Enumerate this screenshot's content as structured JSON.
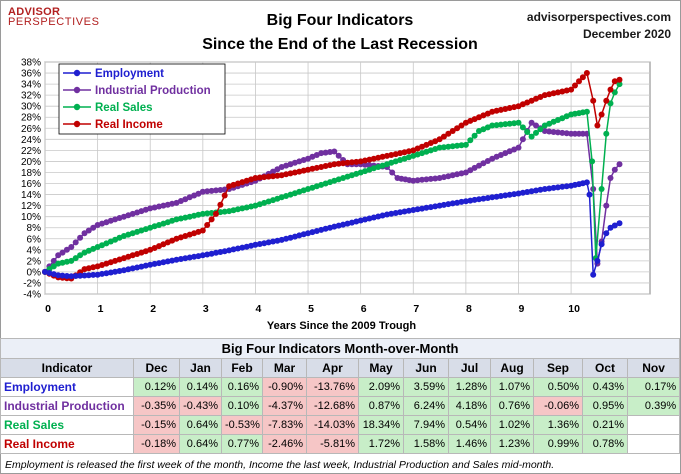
{
  "brand": {
    "line1": "ADVISOR",
    "line2": "PERSPECTIVES"
  },
  "title": "Big Four Indicators",
  "subtitle": "Since the End of the Last Recession",
  "source": "advisorperspectives.com",
  "date": "December 2020",
  "colors": {
    "employment": "#1f1fd0",
    "industrial": "#7030a0",
    "sales": "#00b050",
    "income": "#c00000"
  },
  "chart_data": {
    "type": "line",
    "xlabel": "Years Since the 2009 Trough",
    "xlim": [
      0,
      11.5
    ],
    "ylim": [
      -4,
      38
    ],
    "x_ticks": [
      0,
      1,
      2,
      3,
      4,
      5,
      6,
      7,
      8,
      9,
      10
    ],
    "y_ticks": [
      "-4%",
      "-2%",
      "0%",
      "2%",
      "4%",
      "6%",
      "8%",
      "10%",
      "12%",
      "14%",
      "16%",
      "18%",
      "20%",
      "22%",
      "24%",
      "26%",
      "28%",
      "30%",
      "32%",
      "34%",
      "36%",
      "38%"
    ],
    "legend_position": "top-left",
    "series": [
      {
        "name": "Employment",
        "key": "employment",
        "points": [
          [
            0,
            0
          ],
          [
            0.25,
            -0.6
          ],
          [
            0.5,
            -0.8
          ],
          [
            1,
            -0.5
          ],
          [
            1.5,
            0.3
          ],
          [
            2,
            1.3
          ],
          [
            2.5,
            2.2
          ],
          [
            3,
            3.0
          ],
          [
            3.5,
            3.9
          ],
          [
            4,
            4.9
          ],
          [
            4.5,
            5.8
          ],
          [
            5,
            7.0
          ],
          [
            5.5,
            8.2
          ],
          [
            6,
            9.3
          ],
          [
            6.5,
            10.4
          ],
          [
            7,
            11.2
          ],
          [
            7.5,
            12.0
          ],
          [
            8,
            12.8
          ],
          [
            8.5,
            13.5
          ],
          [
            9,
            14.2
          ],
          [
            9.5,
            15.0
          ],
          [
            10,
            15.6
          ],
          [
            10.3,
            16.2
          ],
          [
            10.35,
            14.0
          ],
          [
            10.42,
            -0.5
          ],
          [
            10.5,
            2.0
          ],
          [
            10.58,
            5.0
          ],
          [
            10.67,
            7.0
          ],
          [
            10.75,
            8.0
          ],
          [
            10.83,
            8.4
          ],
          [
            10.92,
            8.8
          ]
        ]
      },
      {
        "name": "Industrial Production",
        "key": "industrial",
        "points": [
          [
            0,
            0
          ],
          [
            0.25,
            3.0
          ],
          [
            0.5,
            4.5
          ],
          [
            0.75,
            7.0
          ],
          [
            1,
            8.5
          ],
          [
            1.5,
            10.0
          ],
          [
            2,
            11.5
          ],
          [
            2.5,
            12.5
          ],
          [
            3,
            14.5
          ],
          [
            3.5,
            15.0
          ],
          [
            4,
            16.5
          ],
          [
            4.5,
            19.0
          ],
          [
            5,
            20.5
          ],
          [
            5.25,
            21.5
          ],
          [
            5.5,
            21.8
          ],
          [
            5.75,
            19.5
          ],
          [
            6,
            19.5
          ],
          [
            6.5,
            19.0
          ],
          [
            6.7,
            17.0
          ],
          [
            7,
            16.5
          ],
          [
            7.5,
            17.0
          ],
          [
            8,
            18.0
          ],
          [
            8.5,
            20.5
          ],
          [
            9,
            22.5
          ],
          [
            9.25,
            27.0
          ],
          [
            9.5,
            25.5
          ],
          [
            10,
            25.0
          ],
          [
            10.3,
            25.0
          ],
          [
            10.42,
            15.0
          ],
          [
            10.5,
            1.5
          ],
          [
            10.58,
            5.5
          ],
          [
            10.67,
            12.0
          ],
          [
            10.75,
            17.0
          ],
          [
            10.83,
            18.5
          ],
          [
            10.92,
            19.5
          ]
        ]
      },
      {
        "name": "Real Sales",
        "key": "sales",
        "points": [
          [
            0,
            0
          ],
          [
            0.25,
            1.5
          ],
          [
            0.5,
            2.0
          ],
          [
            0.75,
            3.5
          ],
          [
            1,
            4.5
          ],
          [
            1.5,
            6.5
          ],
          [
            2,
            8.0
          ],
          [
            2.5,
            9.5
          ],
          [
            3,
            10.5
          ],
          [
            3.5,
            11.0
          ],
          [
            4,
            12.0
          ],
          [
            4.5,
            13.5
          ],
          [
            5,
            15.0
          ],
          [
            5.5,
            16.5
          ],
          [
            6,
            18.0
          ],
          [
            6.5,
            19.5
          ],
          [
            7,
            21.0
          ],
          [
            7.5,
            22.5
          ],
          [
            8,
            23.0
          ],
          [
            8.25,
            25.5
          ],
          [
            8.5,
            26.5
          ],
          [
            9,
            27.0
          ],
          [
            9.25,
            24.5
          ],
          [
            9.5,
            26.5
          ],
          [
            10,
            28.5
          ],
          [
            10.3,
            29.0
          ],
          [
            10.4,
            20.0
          ],
          [
            10.47,
            2.5
          ],
          [
            10.58,
            15.0
          ],
          [
            10.67,
            25.0
          ],
          [
            10.75,
            30.5
          ],
          [
            10.83,
            32.5
          ],
          [
            10.92,
            34.0
          ]
        ]
      },
      {
        "name": "Real Income",
        "key": "income",
        "points": [
          [
            0,
            0
          ],
          [
            0.25,
            -1.0
          ],
          [
            0.5,
            -1.2
          ],
          [
            0.75,
            0.5
          ],
          [
            1,
            1.0
          ],
          [
            1.5,
            2.5
          ],
          [
            2,
            4.0
          ],
          [
            2.5,
            6.0
          ],
          [
            3,
            7.5
          ],
          [
            3.25,
            10.5
          ],
          [
            3.5,
            15.5
          ],
          [
            4,
            17.0
          ],
          [
            4.5,
            17.5
          ],
          [
            5,
            18.5
          ],
          [
            5.5,
            19.5
          ],
          [
            6,
            20.0
          ],
          [
            6.5,
            21.0
          ],
          [
            7,
            22.0
          ],
          [
            7.5,
            24.0
          ],
          [
            8,
            27.0
          ],
          [
            8.5,
            29.0
          ],
          [
            9,
            30.0
          ],
          [
            9.5,
            32.0
          ],
          [
            10,
            33.0
          ],
          [
            10.3,
            36.0
          ],
          [
            10.42,
            31.0
          ],
          [
            10.5,
            26.5
          ],
          [
            10.58,
            28.5
          ],
          [
            10.67,
            31.0
          ],
          [
            10.75,
            33.0
          ],
          [
            10.83,
            34.5
          ],
          [
            10.92,
            34.8
          ]
        ]
      }
    ]
  },
  "table": {
    "title": "Big Four Indicators Month-over-Month",
    "header": [
      "Indicator",
      "Dec",
      "Jan",
      "Feb",
      "Mar",
      "Apr",
      "May",
      "Jun",
      "Jul",
      "Aug",
      "Sep",
      "Oct",
      "Nov"
    ],
    "rows": [
      {
        "key": "employment",
        "label": "Employment",
        "values": [
          "0.12%",
          "0.14%",
          "0.16%",
          "-0.90%",
          "-13.76%",
          "2.09%",
          "3.59%",
          "1.28%",
          "1.07%",
          "0.50%",
          "0.43%",
          "0.17%"
        ]
      },
      {
        "key": "industrial",
        "label": "Industrial Production",
        "values": [
          "-0.35%",
          "-0.43%",
          "0.10%",
          "-4.37%",
          "-12.68%",
          "0.87%",
          "6.24%",
          "4.18%",
          "0.76%",
          "-0.06%",
          "0.95%",
          "0.39%"
        ]
      },
      {
        "key": "sales",
        "label": "Real Sales",
        "values": [
          "-0.15%",
          "0.64%",
          "-0.53%",
          "-7.83%",
          "-14.03%",
          "18.34%",
          "7.94%",
          "0.54%",
          "1.02%",
          "1.36%",
          "0.21%",
          ""
        ]
      },
      {
        "key": "income",
        "label": "Real Income",
        "values": [
          "-0.18%",
          "0.64%",
          "0.77%",
          "-2.46%",
          "-5.81%",
          "1.72%",
          "1.58%",
          "1.46%",
          "1.23%",
          "0.99%",
          "0.78%",
          ""
        ]
      }
    ]
  },
  "footnote": "Employment is released the first week of the month, Income the last week, Industrial Production and Sales mid-month."
}
